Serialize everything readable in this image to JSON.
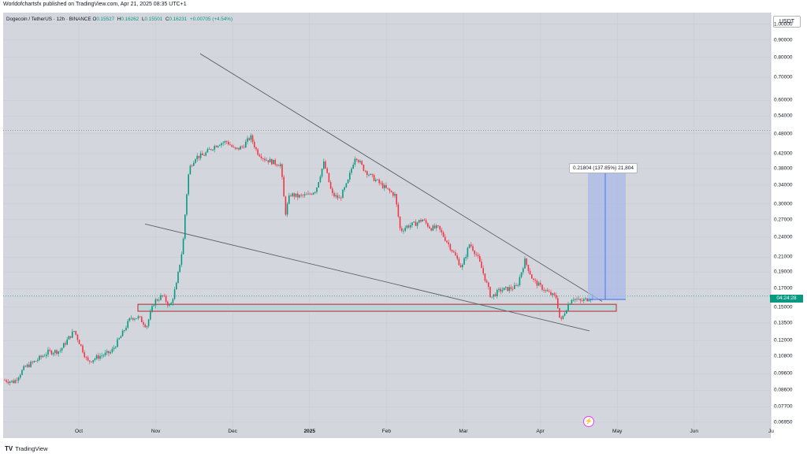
{
  "header": {
    "published": "Worldofchartsfx published on TradingView.com, Apr 21, 2025 08:35 UTC+1"
  },
  "symbol": {
    "name": "Dogecoin / TetherUS · 12h · BINANCE",
    "o_label": "O",
    "o": "0.15527",
    "h_label": "H",
    "h": "0.16262",
    "l_label": "L",
    "l": "0.15501",
    "c_label": "C",
    "c": "0.16231",
    "change": "+0.00705 (+4.54%)"
  },
  "currency_button": "USDT",
  "price_tag": "04:24:28",
  "measure_label": "0.21804 (137.85%) 21,804",
  "footer": {
    "logo": "TV",
    "brand": "TradingView"
  },
  "colors": {
    "up": "#089981",
    "down": "#f23645",
    "background": "#d4d6de",
    "trendline": "#5d606b",
    "measure_fill": "#aab8e6",
    "measure_line": "#2962ff",
    "zone_fill": "#b8d6d8",
    "zone_border": "#c8232c"
  },
  "icons": {
    "lightning": "lightning-icon"
  },
  "chart_data": {
    "type": "candlestick",
    "scale": "log",
    "x_ticks": [
      "Oct",
      "Nov",
      "Dec",
      "2025",
      "Feb",
      "Mar",
      "Apr",
      "May",
      "Jun",
      "Ju"
    ],
    "y_ticks": [
      "1.00000",
      "0.90000",
      "0.80000",
      "0.70000",
      "0.60000",
      "0.54000",
      "0.48000",
      "0.42000",
      "0.38000",
      "0.34000",
      "0.30000",
      "0.27000",
      "0.24000",
      "0.21000",
      "0.19000",
      "0.17000",
      "0.15000",
      "0.13500",
      "0.12000",
      "0.10800",
      "0.09600",
      "0.08600",
      "0.07700",
      "0.06950"
    ],
    "ylim": [
      0.0665,
      1.08
    ],
    "price_path": [
      [
        0,
        0.092
      ],
      [
        12,
        0.091
      ],
      [
        25,
        0.1
      ],
      [
        40,
        0.105
      ],
      [
        55,
        0.111
      ],
      [
        70,
        0.112
      ],
      [
        88,
        0.128
      ],
      [
        95,
        0.118
      ],
      [
        105,
        0.104
      ],
      [
        120,
        0.108
      ],
      [
        135,
        0.111
      ],
      [
        148,
        0.124
      ],
      [
        160,
        0.14
      ],
      [
        170,
        0.14
      ],
      [
        180,
        0.132
      ],
      [
        190,
        0.156
      ],
      [
        200,
        0.162
      ],
      [
        210,
        0.15
      ],
      [
        218,
        0.175
      ],
      [
        226,
        0.225
      ],
      [
        234,
        0.38
      ],
      [
        242,
        0.41
      ],
      [
        252,
        0.415
      ],
      [
        262,
        0.435
      ],
      [
        272,
        0.45
      ],
      [
        282,
        0.455
      ],
      [
        292,
        0.43
      ],
      [
        302,
        0.44
      ],
      [
        312,
        0.47
      ],
      [
        320,
        0.425
      ],
      [
        330,
        0.405
      ],
      [
        342,
        0.395
      ],
      [
        350,
        0.39
      ],
      [
        356,
        0.28
      ],
      [
        362,
        0.32
      ],
      [
        372,
        0.315
      ],
      [
        385,
        0.318
      ],
      [
        395,
        0.33
      ],
      [
        405,
        0.395
      ],
      [
        415,
        0.32
      ],
      [
        425,
        0.31
      ],
      [
        435,
        0.345
      ],
      [
        445,
        0.415
      ],
      [
        455,
        0.38
      ],
      [
        465,
        0.36
      ],
      [
        475,
        0.345
      ],
      [
        485,
        0.33
      ],
      [
        495,
        0.318
      ],
      [
        502,
        0.25
      ],
      [
        510,
        0.258
      ],
      [
        520,
        0.262
      ],
      [
        530,
        0.27
      ],
      [
        540,
        0.255
      ],
      [
        550,
        0.255
      ],
      [
        560,
        0.235
      ],
      [
        570,
        0.215
      ],
      [
        580,
        0.195
      ],
      [
        590,
        0.23
      ],
      [
        600,
        0.21
      ],
      [
        610,
        0.18
      ],
      [
        617,
        0.16
      ],
      [
        628,
        0.168
      ],
      [
        640,
        0.17
      ],
      [
        650,
        0.172
      ],
      [
        660,
        0.205
      ],
      [
        670,
        0.18
      ],
      [
        680,
        0.172
      ],
      [
        690,
        0.165
      ],
      [
        700,
        0.16
      ],
      [
        705,
        0.135
      ],
      [
        712,
        0.148
      ],
      [
        720,
        0.16
      ],
      [
        730,
        0.156
      ],
      [
        738,
        0.158
      ],
      [
        746,
        0.162
      ]
    ],
    "zone": {
      "price_low": 0.146,
      "price_high": 0.153
    },
    "trendlines": [
      {
        "from": [
          0.48,
          0.82
        ],
        "to": [
          0.76,
          0.156
        ]
      },
      {
        "from": [
          0.35,
          0.262
        ],
        "to": [
          0.75,
          0.128
        ]
      }
    ],
    "dotted_level": 0.49,
    "current_price": 0.1616,
    "measure_box": {
      "price_low": 0.158,
      "price_high": 0.378
    }
  }
}
